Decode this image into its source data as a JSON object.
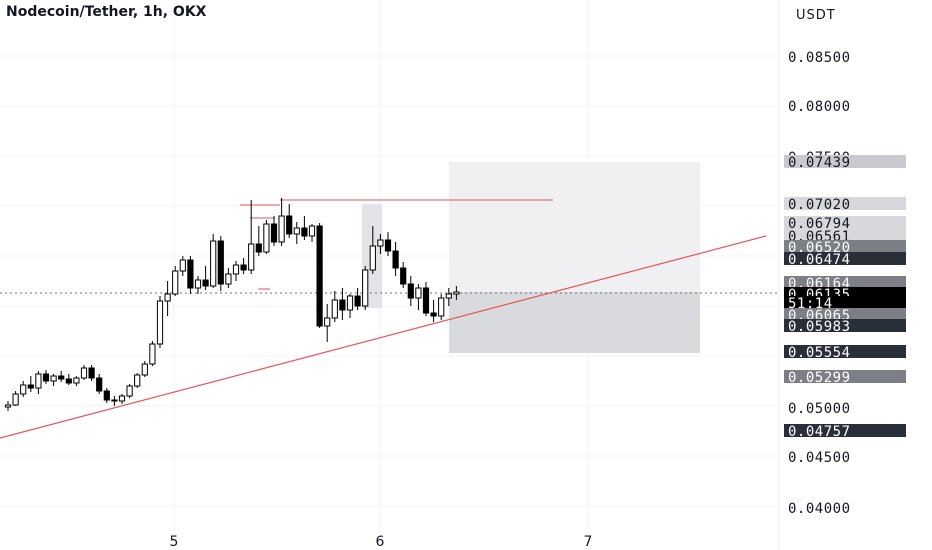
{
  "header": {
    "title": "Nodecoin/Tether, 1h, OKX"
  },
  "price_axis": {
    "currency": "USDT",
    "ticks": [
      "0.08500",
      "0.08000",
      "0.07500",
      "0.05000",
      "0.04500",
      "0.04000"
    ]
  },
  "time_axis": {
    "labels": [
      "5",
      "6",
      "7"
    ]
  },
  "price_labels": [
    {
      "text": "0.07439",
      "bg": "#c9cacf",
      "fg": "#131722"
    },
    {
      "text": "0.07020",
      "bg": "#d7d8dc",
      "fg": "#131722"
    },
    {
      "text": "0.06794",
      "bg": "#d7d8dc",
      "fg": "#131722"
    },
    {
      "text": "0.06561",
      "bg": "#d7d8dc",
      "fg": "#131722"
    },
    {
      "text": "0.06520",
      "bg": "#7d7f86",
      "fg": "#ffffff"
    },
    {
      "text": "0.06474",
      "bg": "#2a2e39",
      "fg": "#ffffff"
    },
    {
      "text": "0.06164",
      "bg": "#7d7f86",
      "fg": "#ffffff"
    },
    {
      "text": "0.06135",
      "bg": "#000000",
      "fg": "#ffffff"
    },
    {
      "text": "51:14",
      "bg": "#000000",
      "fg": "#ffffff"
    },
    {
      "text": "0.06065",
      "bg": "#7d7f86",
      "fg": "#ffffff"
    },
    {
      "text": "0.05983",
      "bg": "#2a2e39",
      "fg": "#ffffff"
    },
    {
      "text": "0.05554",
      "bg": "#2a2e39",
      "fg": "#ffffff"
    },
    {
      "text": "0.05299",
      "bg": "#7d7f86",
      "fg": "#ffffff"
    },
    {
      "text": "0.04757",
      "bg": "#2a2e39",
      "fg": "#ffffff"
    }
  ],
  "colors": {
    "up": "#ffffff",
    "down": "#000000",
    "wick": "#000000",
    "trendline": "#e8545a",
    "target_zone": "#f0f0f3",
    "stop_zone": "#d9dadd",
    "grid": "#f0f3fa"
  },
  "chart_data": {
    "type": "candlestick",
    "title": "Nodecoin/Tether, 1h, OKX",
    "y_axis": {
      "unit": "USDT",
      "scale": "linear"
    },
    "x_axis": {
      "labels": [
        "5",
        "6",
        "7"
      ]
    },
    "candles_approx": [
      [
        0.0499,
        0.0505,
        0.0495,
        0.0501
      ],
      [
        0.0501,
        0.0515,
        0.05,
        0.0512
      ],
      [
        0.0512,
        0.0525,
        0.0509,
        0.0521
      ],
      [
        0.0521,
        0.053,
        0.0514,
        0.0518
      ],
      [
        0.0518,
        0.0535,
        0.0512,
        0.0532
      ],
      [
        0.0532,
        0.0536,
        0.0522,
        0.0525
      ],
      [
        0.0525,
        0.0532,
        0.052,
        0.053
      ],
      [
        0.053,
        0.0535,
        0.0524,
        0.0527
      ],
      [
        0.0527,
        0.0532,
        0.0521,
        0.0523
      ],
      [
        0.0523,
        0.053,
        0.052,
        0.0528
      ],
      [
        0.0528,
        0.0541,
        0.0526,
        0.0538
      ],
      [
        0.0538,
        0.0541,
        0.0525,
        0.0528
      ],
      [
        0.0528,
        0.0532,
        0.0512,
        0.0515
      ],
      [
        0.0515,
        0.0518,
        0.0503,
        0.0506
      ],
      [
        0.0506,
        0.051,
        0.05,
        0.0505
      ],
      [
        0.0505,
        0.0512,
        0.0502,
        0.051
      ],
      [
        0.051,
        0.0522,
        0.0508,
        0.052
      ],
      [
        0.052,
        0.0533,
        0.0518,
        0.0531
      ],
      [
        0.0531,
        0.0545,
        0.0529,
        0.0542
      ],
      [
        0.0542,
        0.0565,
        0.054,
        0.0562
      ],
      [
        0.0562,
        0.061,
        0.0558,
        0.0605
      ],
      [
        0.0605,
        0.0625,
        0.059,
        0.0612
      ],
      [
        0.0612,
        0.064,
        0.061,
        0.0635
      ],
      [
        0.0635,
        0.065,
        0.063,
        0.0646
      ],
      [
        0.0646,
        0.065,
        0.0612,
        0.0618
      ],
      [
        0.0618,
        0.063,
        0.0612,
        0.0626
      ],
      [
        0.0626,
        0.064,
        0.0616,
        0.062
      ],
      [
        0.062,
        0.0672,
        0.0618,
        0.0665
      ],
      [
        0.0665,
        0.067,
        0.0615,
        0.0622
      ],
      [
        0.0622,
        0.0638,
        0.0618,
        0.0632
      ],
      [
        0.0632,
        0.0645,
        0.0625,
        0.0641
      ],
      [
        0.0641,
        0.0648,
        0.0632,
        0.0636
      ],
      [
        0.0636,
        0.0706,
        0.0632,
        0.0662
      ],
      [
        0.0662,
        0.068,
        0.065,
        0.0654
      ],
      [
        0.0654,
        0.0686,
        0.0652,
        0.0682
      ],
      [
        0.0682,
        0.069,
        0.066,
        0.0664
      ],
      [
        0.0664,
        0.0708,
        0.066,
        0.069
      ],
      [
        0.069,
        0.0702,
        0.0668,
        0.0672
      ],
      [
        0.0672,
        0.0684,
        0.0662,
        0.0678
      ],
      [
        0.0678,
        0.069,
        0.0666,
        0.067
      ],
      [
        0.067,
        0.0682,
        0.0664,
        0.068
      ],
      [
        0.068,
        0.0683,
        0.0578,
        0.058
      ],
      [
        0.058,
        0.0602,
        0.0564,
        0.0588
      ],
      [
        0.0588,
        0.0615,
        0.0584,
        0.0606
      ],
      [
        0.0606,
        0.0618,
        0.0586,
        0.0596
      ],
      [
        0.0596,
        0.0612,
        0.0588,
        0.061
      ],
      [
        0.061,
        0.0618,
        0.0596,
        0.06
      ],
      [
        0.06,
        0.064,
        0.0596,
        0.0636
      ],
      [
        0.0636,
        0.068,
        0.0632,
        0.066
      ],
      [
        0.066,
        0.0672,
        0.0652,
        0.0666
      ],
      [
        0.0666,
        0.0674,
        0.065,
        0.0655
      ],
      [
        0.0655,
        0.0664,
        0.063,
        0.0638
      ],
      [
        0.0638,
        0.0644,
        0.0618,
        0.0622
      ],
      [
        0.0622,
        0.063,
        0.06,
        0.0608
      ],
      [
        0.0608,
        0.0622,
        0.0596,
        0.0618
      ],
      [
        0.0618,
        0.0624,
        0.059,
        0.0593
      ],
      [
        0.0593,
        0.0606,
        0.0584,
        0.059
      ],
      [
        0.059,
        0.0612,
        0.0586,
        0.0608
      ],
      [
        0.0608,
        0.0618,
        0.06,
        0.0612
      ],
      [
        0.0612,
        0.062,
        0.0606,
        0.0614
      ]
    ]
  }
}
